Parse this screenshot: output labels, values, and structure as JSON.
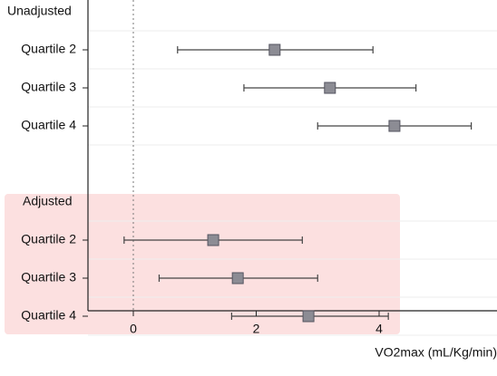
{
  "chart_data": {
    "type": "scatter",
    "subtype": "forest-plot",
    "title": "",
    "xlabel": "VO2max (mL/Kg/min)",
    "ylabel": "",
    "xlim": [
      -0.75,
      6.0
    ],
    "xticks": [
      0,
      2,
      4
    ],
    "reference_line_x": 0,
    "grid": "horizontal",
    "groups": [
      {
        "name": "Unadjusted",
        "highlighted": false,
        "rows": [
          {
            "label": "Quartile 2",
            "estimate": 2.3,
            "lower": 0.72,
            "upper": 3.9
          },
          {
            "label": "Quartile 3",
            "estimate": 3.2,
            "lower": 1.8,
            "upper": 4.6
          },
          {
            "label": "Quartile 4",
            "estimate": 4.25,
            "lower": 3.0,
            "upper": 5.5
          }
        ]
      },
      {
        "name": "Adjusted",
        "highlighted": true,
        "rows": [
          {
            "label": "Quartile 2",
            "estimate": 1.3,
            "lower": -0.15,
            "upper": 2.75
          },
          {
            "label": "Quartile 3",
            "estimate": 1.7,
            "lower": 0.42,
            "upper": 3.0
          },
          {
            "label": "Quartile 4",
            "estimate": 2.85,
            "lower": 1.6,
            "upper": 4.15
          }
        ]
      }
    ],
    "colors": {
      "marker_fill": "#8c8c94",
      "marker_stroke": "#555560",
      "whisker": "#444444",
      "highlight": "#fce0e0",
      "gridline": "#eeeeee",
      "axis": "#222222",
      "reference_line": "#777777"
    }
  }
}
